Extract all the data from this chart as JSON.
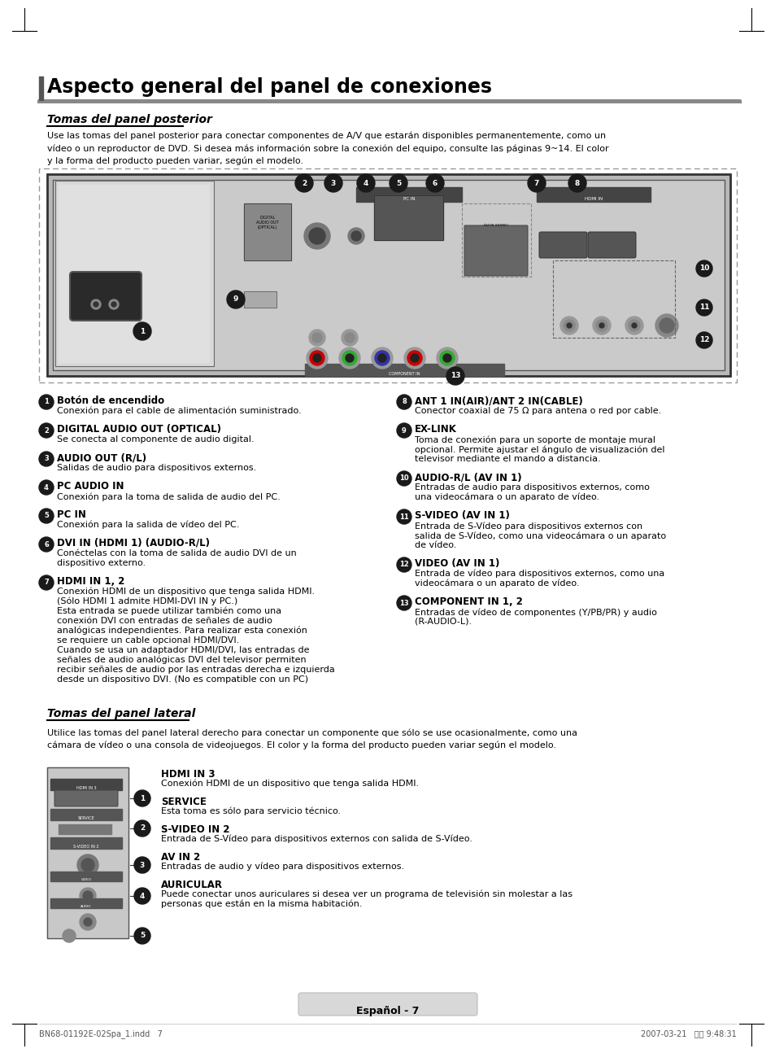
{
  "title": "Aspecto general del panel de conexiones",
  "section1_title": "Tomas del panel posterior",
  "section1_body": "Use las tomas del panel posterior para conectar componentes de A/V que estarán disponibles permanentemente, como un\nvídeo o un reproductor de DVD. Si desea más información sobre la conexión del equipo, consulte las páginas 9~14. El color\ny la forma del producto pueden variar, según el modelo.",
  "section2_title": "Tomas del panel lateral",
  "section2_body": "Utilice las tomas del panel lateral derecho para conectar un componente que sólo se use ocasionalmente, como una\ncámara de vídeo o una consola de videojuegos. El color y la forma del producto pueden variar según el modelo.",
  "items_left": [
    {
      "num": "1",
      "title": "Botón de encendido",
      "desc": "Conexión para el cable de alimentación suministrado."
    },
    {
      "num": "2",
      "title": "DIGITAL AUDIO OUT (OPTICAL)",
      "desc": "Se conecta al componente de audio digital."
    },
    {
      "num": "3",
      "title": "AUDIO OUT (R/L)",
      "desc": "Salidas de audio para dispositivos externos."
    },
    {
      "num": "4",
      "title": "PC AUDIO IN",
      "desc": "Conexión para la toma de salida de audio del PC."
    },
    {
      "num": "5",
      "title": "PC IN",
      "desc": "Conexión para la salida de vídeo del PC."
    },
    {
      "num": "6",
      "title": "DVI IN (HDMI 1) (AUDIO-R/L)",
      "desc": "Conéctelas con la toma de salida de audio DVI de un\ndispositivo externo."
    },
    {
      "num": "7",
      "title": "HDMI IN 1, 2",
      "desc": "Conexión HDMI de un dispositivo que tenga salida HDMI.\n(Sólo HDMI 1 admite HDMI-DVI IN y PC.)\nEsta entrada se puede utilizar también como una\nconexión DVI con entradas de señales de audio\nanalógicas independientes. Para realizar esta conexión\nse requiere un cable opcional HDMI/DVI.\nCuando se usa un adaptador HDMI/DVI, las entradas de\nseñales de audio analógicas DVI del televisor permiten\nrecibir señales de audio por las entradas derecha e izquierda\ndesde un dispositivo DVI. (No es compatible con un PC)"
    }
  ],
  "items_right": [
    {
      "num": "8",
      "title": "ANT 1 IN(AIR)/ANT 2 IN(CABLE)",
      "desc": "Conector coaxial de 75 Ω para antena o red por cable."
    },
    {
      "num": "9",
      "title": "EX-LINK",
      "desc": "Toma de conexión para un soporte de montaje mural\nopcional. Permite ajustar el ángulo de visualización del\ntelevisor mediante el mando a distancia."
    },
    {
      "num": "10",
      "title": "AUDIO-R/L (AV IN 1)",
      "desc": "Entradas de audio para dispositivos externos, como\nuna videocámara o un aparato de vídeo."
    },
    {
      "num": "11",
      "title": "S-VIDEO (AV IN 1)",
      "desc": "Entrada de S-Vídeo para dispositivos externos con\nsalida de S-Vídeo, como una videocámara o un aparato\nde vídeo."
    },
    {
      "num": "12",
      "title": "VIDEO (AV IN 1)",
      "desc": "Entrada de vídeo para dispositivos externos, como una\nvideocámara o un aparato de vídeo."
    },
    {
      "num": "13",
      "title": "COMPONENT IN 1, 2",
      "desc": "Entradas de vídeo de componentes (Y/PB/PR) y audio\n(R-AUDIO-L)."
    }
  ],
  "items_side": [
    {
      "num": "1",
      "title": "HDMI IN 3",
      "desc": "Conexión HDMI de un dispositivo que tenga salida HDMI."
    },
    {
      "num": "2",
      "title": "SERVICE",
      "desc": "Esta toma es sólo para servicio técnico."
    },
    {
      "num": "3",
      "title": "S-VIDEO IN 2",
      "desc": "Entrada de S-Vídeo para dispositivos externos con salida de S-Vídeo."
    },
    {
      "num": "4",
      "title": "AV IN 2",
      "desc": "Entradas de audio y vídeo para dispositivos externos."
    },
    {
      "num": "5",
      "title": "AURICULAR",
      "desc": "Puede conectar unos auriculares si desea ver un programa de televisión sin molestar a las\npersonas que están en la misma habitación."
    }
  ],
  "footer_text": "Español - 7",
  "footer_file": "BN68-01192E-02Spa_1.indd   7",
  "footer_date": "2007-03-21   오전 9:48:31",
  "bg_color": "#ffffff",
  "circle_color": "#1a1a1a",
  "circle_text_color": "#ffffff"
}
